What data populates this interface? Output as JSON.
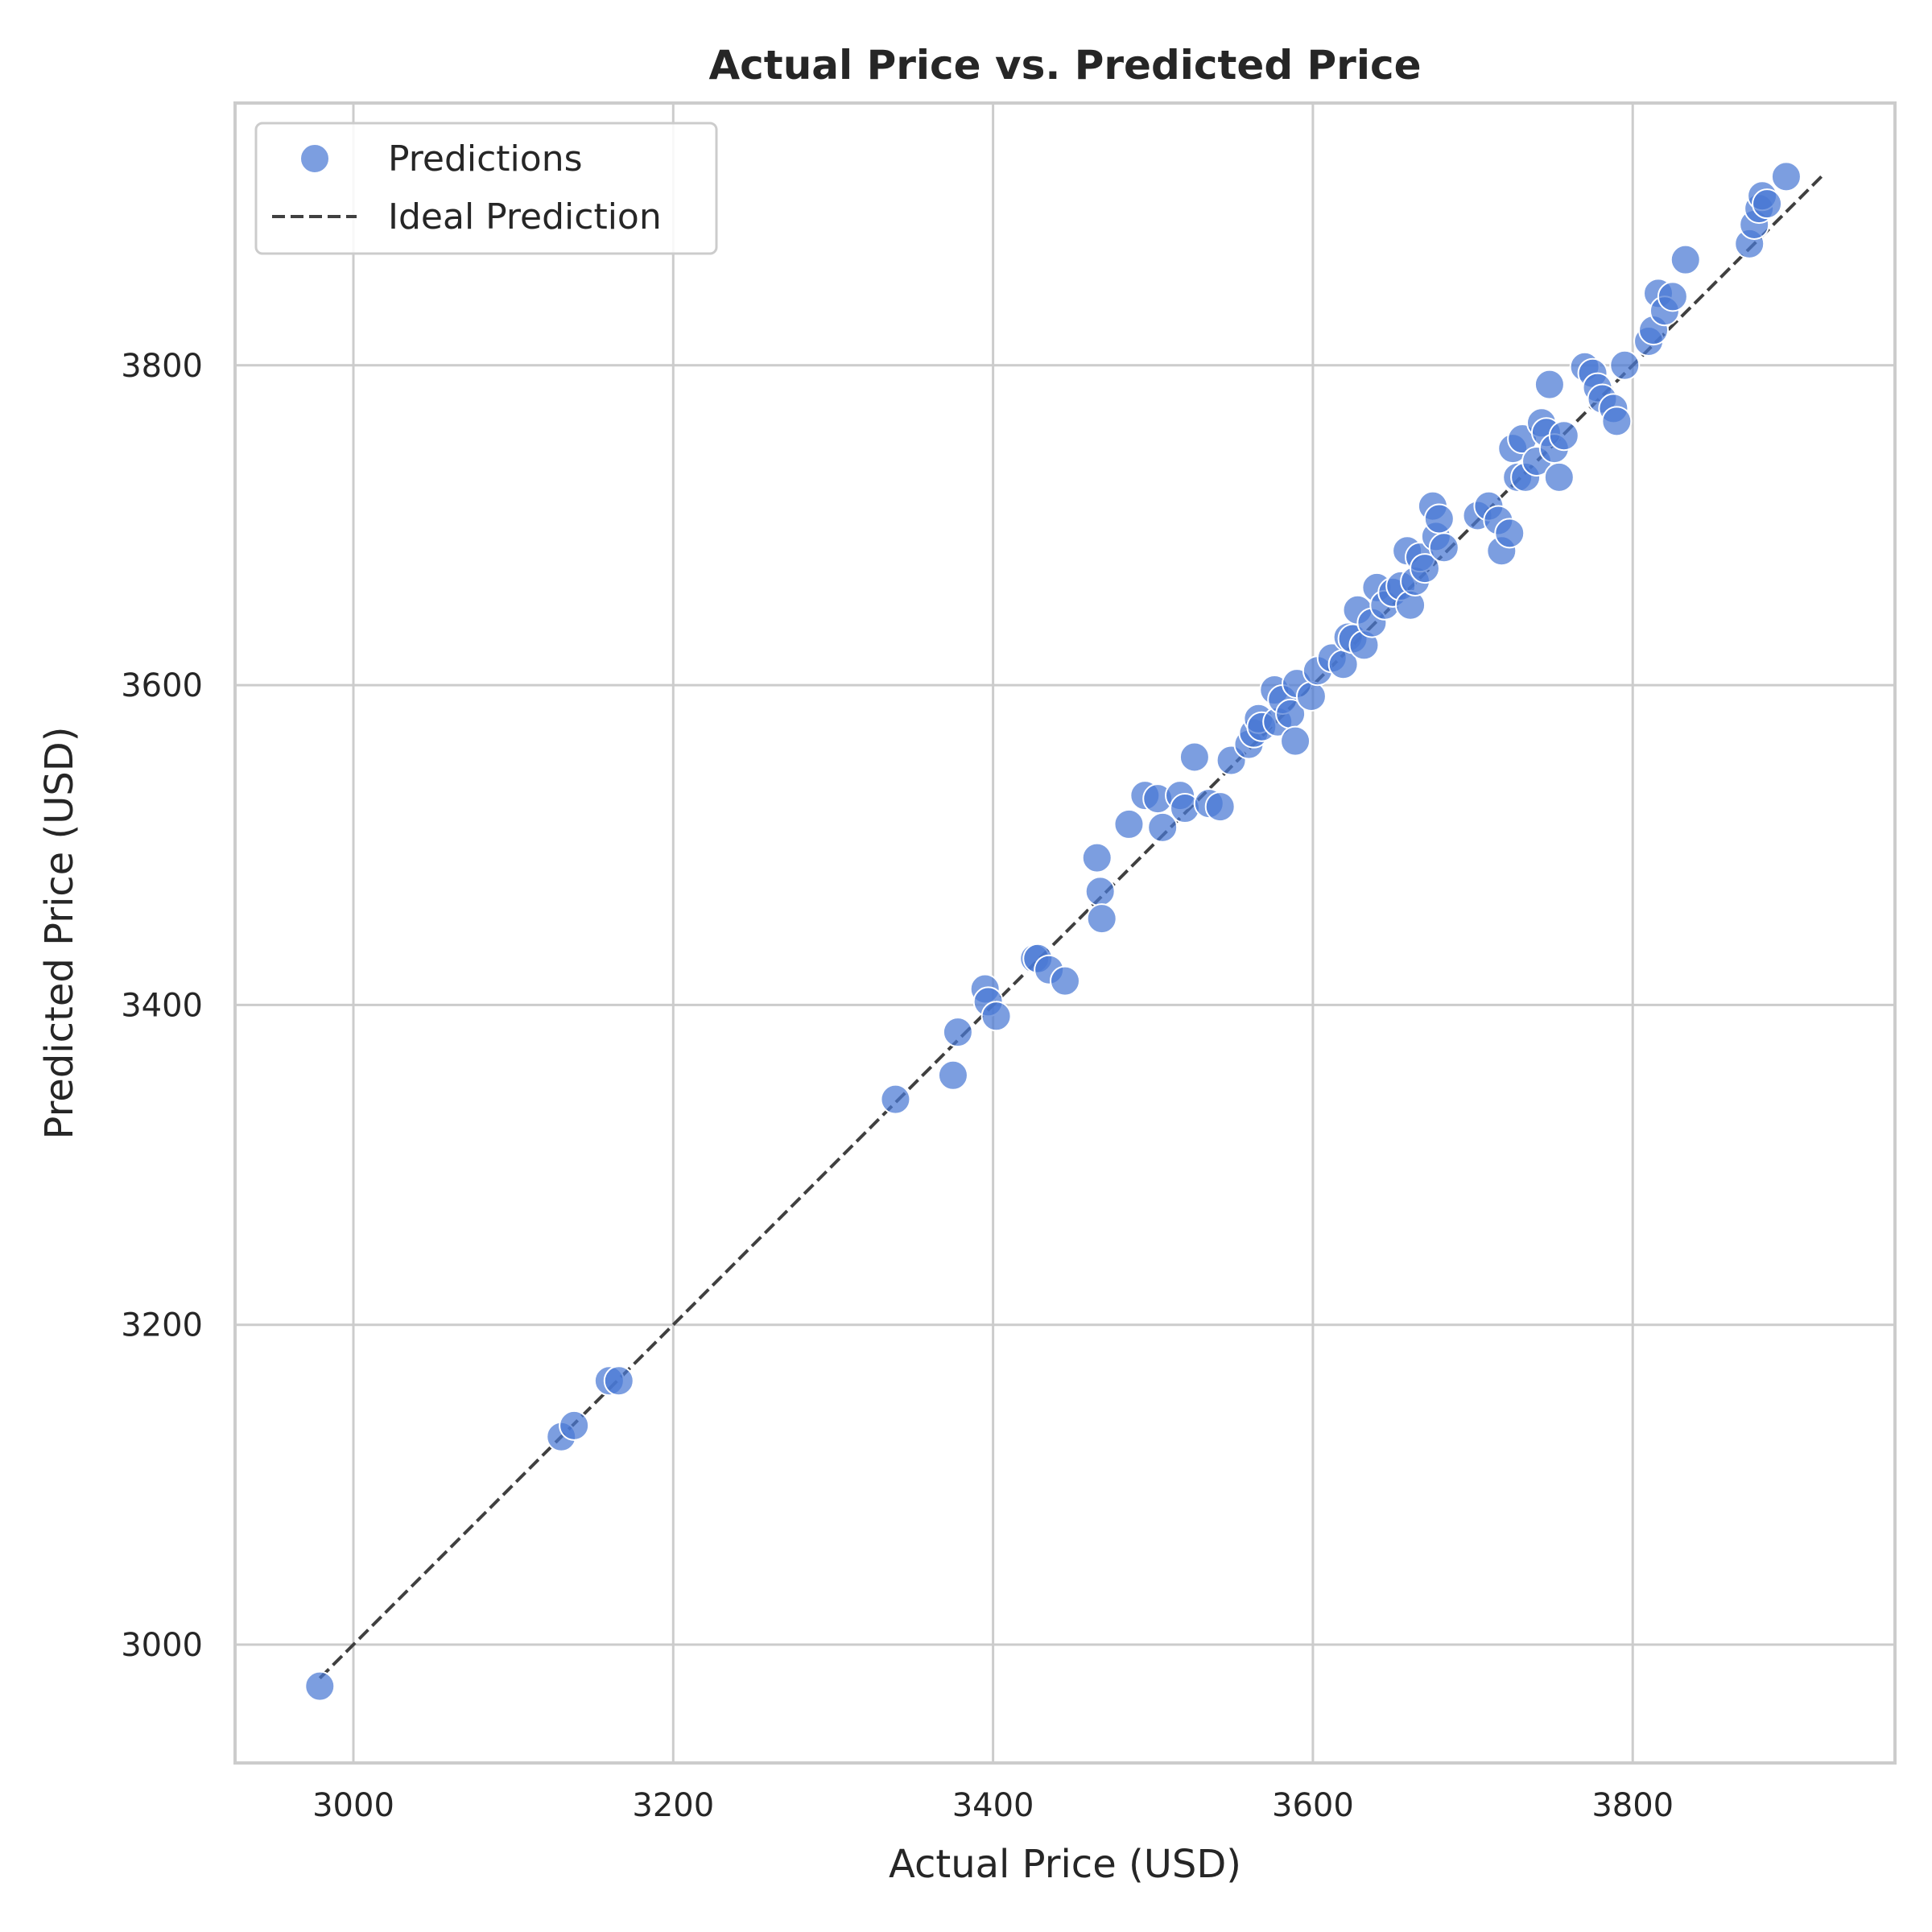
{
  "chart_data": {
    "type": "scatter",
    "title": "Actual Price vs. Predicted Price",
    "xlabel": "Actual Price (USD)",
    "ylabel": "Predicted Price (USD)",
    "xlim": [
      2926,
      3964
    ],
    "ylim": [
      2926,
      3964
    ],
    "xticks": [
      3000,
      3200,
      3400,
      3600,
      3800
    ],
    "yticks": [
      3000,
      3200,
      3400,
      3600,
      3800
    ],
    "grid": true,
    "legend_position": "upper-left",
    "colors": {
      "points": "#4a78d4",
      "ideal_line": "#404040"
    },
    "series": [
      {
        "name": "Predictions",
        "kind": "scatter",
        "points": [
          [
            2979,
            2974
          ],
          [
            3130,
            3130
          ],
          [
            3138,
            3137
          ],
          [
            3160,
            3165
          ],
          [
            3166,
            3165
          ],
          [
            3339,
            3341
          ],
          [
            3375,
            3356
          ],
          [
            3378,
            3383
          ],
          [
            3395,
            3410
          ],
          [
            3397,
            3402
          ],
          [
            3402,
            3393
          ],
          [
            3426,
            3429
          ],
          [
            3428,
            3429
          ],
          [
            3435,
            3422
          ],
          [
            3445,
            3415
          ],
          [
            3465,
            3492
          ],
          [
            3467,
            3471
          ],
          [
            3468,
            3454
          ],
          [
            3485,
            3513
          ],
          [
            3495,
            3531
          ],
          [
            3503,
            3529
          ],
          [
            3506,
            3511
          ],
          [
            3517,
            3531
          ],
          [
            3520,
            3523
          ],
          [
            3526,
            3555
          ],
          [
            3535,
            3526
          ],
          [
            3542,
            3524
          ],
          [
            3549,
            3553
          ],
          [
            3560,
            3563
          ],
          [
            3563,
            3570
          ],
          [
            3566,
            3579
          ],
          [
            3568,
            3574
          ],
          [
            3576,
            3597
          ],
          [
            3578,
            3577
          ],
          [
            3581,
            3591
          ],
          [
            3586,
            3582
          ],
          [
            3589,
            3565
          ],
          [
            3590,
            3601
          ],
          [
            3599,
            3593
          ],
          [
            3603,
            3609
          ],
          [
            3612,
            3617
          ],
          [
            3619,
            3613
          ],
          [
            3622,
            3630
          ],
          [
            3625,
            3629
          ],
          [
            3628,
            3647
          ],
          [
            3632,
            3625
          ],
          [
            3637,
            3639
          ],
          [
            3640,
            3661
          ],
          [
            3645,
            3650
          ],
          [
            3650,
            3658
          ],
          [
            3655,
            3662
          ],
          [
            3659,
            3684
          ],
          [
            3661,
            3650
          ],
          [
            3664,
            3665
          ],
          [
            3667,
            3680
          ],
          [
            3670,
            3673
          ],
          [
            3675,
            3712
          ],
          [
            3677,
            3693
          ],
          [
            3679,
            3704
          ],
          [
            3682,
            3686
          ],
          [
            3703,
            3706
          ],
          [
            3710,
            3712
          ],
          [
            3716,
            3703
          ],
          [
            3718,
            3684
          ],
          [
            3723,
            3695
          ],
          [
            3725,
            3748
          ],
          [
            3728,
            3730
          ],
          [
            3731,
            3754
          ],
          [
            3733,
            3730
          ],
          [
            3740,
            3740
          ],
          [
            3743,
            3764
          ],
          [
            3746,
            3758
          ],
          [
            3748,
            3788
          ],
          [
            3751,
            3748
          ],
          [
            3754,
            3730
          ],
          [
            3757,
            3756
          ],
          [
            3770,
            3799
          ],
          [
            3775,
            3795
          ],
          [
            3778,
            3786
          ],
          [
            3781,
            3779
          ],
          [
            3788,
            3773
          ],
          [
            3790,
            3765
          ],
          [
            3795,
            3800
          ],
          [
            3810,
            3815
          ],
          [
            3813,
            3822
          ],
          [
            3816,
            3845
          ],
          [
            3820,
            3834
          ],
          [
            3825,
            3843
          ],
          [
            3833,
            3866
          ],
          [
            3873,
            3876
          ],
          [
            3876,
            3888
          ],
          [
            3879,
            3898
          ],
          [
            3881,
            3906
          ],
          [
            3884,
            3901
          ],
          [
            3896,
            3918
          ]
        ]
      },
      {
        "name": "Ideal Prediction",
        "kind": "line",
        "style": "dashed",
        "x": [
          2979,
          3918
        ],
        "y": [
          2979,
          3918
        ]
      }
    ]
  }
}
